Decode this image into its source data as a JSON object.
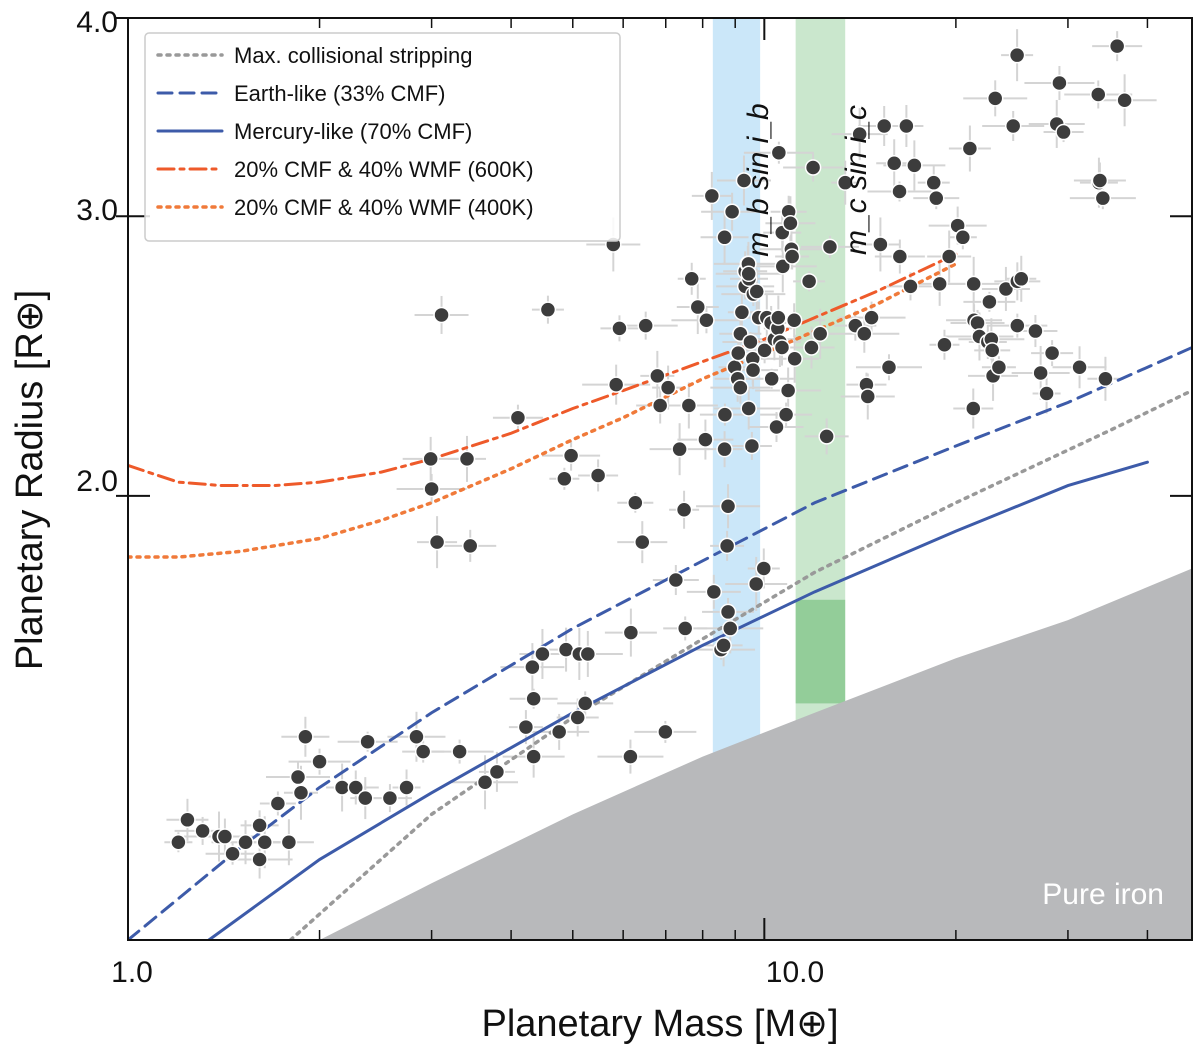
{
  "chart_data": {
    "type": "scatter",
    "xscale": "log",
    "yscale": "log",
    "xlim": [
      1.0,
      47.0
    ],
    "ylim": [
      1.05,
      4.0
    ],
    "xlabel": "Planetary Mass [M⊕]",
    "ylabel": "Planetary Radius [R⊕]",
    "x_major_ticks": [
      1.0,
      10.0
    ],
    "x_major_tick_labels": [
      "1.0",
      "10.0"
    ],
    "x_minor_ticks": [
      2,
      3,
      4,
      5,
      6,
      7,
      8,
      9,
      20,
      30,
      40
    ],
    "y_major_ticks": [
      2.0,
      3.0,
      4.0
    ],
    "y_major_tick_labels": [
      "2.0",
      "3.0",
      "4.0"
    ],
    "legend": {
      "position": "top-left",
      "entries": [
        {
          "label": "Max. collisional stripping",
          "color": "#999999",
          "style": "dotted"
        },
        {
          "label": "Earth-like (33% CMF)",
          "color": "#3d5ba9",
          "style": "dashed"
        },
        {
          "label": "Mercury-like (70% CMF)",
          "color": "#3d5ba9",
          "style": "solid"
        },
        {
          "label": "20% CMF & 40% WMF (600K)",
          "color": "#ee5a2a",
          "style": "dashdot"
        },
        {
          "label": "20% CMF & 40% WMF (400K)",
          "color": "#f07a3a",
          "style": "dotted"
        }
      ]
    },
    "series": [
      {
        "name": "Max. collisional stripping",
        "color": "#999999",
        "style": "dotted",
        "x": [
          1.8,
          3.0,
          5.0,
          8.0,
          12.0,
          20.0,
          35.0,
          47.0
        ],
        "y": [
          1.05,
          1.26,
          1.45,
          1.625,
          1.79,
          1.98,
          2.2,
          2.33
        ]
      },
      {
        "name": "Earth-like (33% CMF)",
        "color": "#3d5ba9",
        "style": "dashed",
        "x": [
          1.0,
          1.5,
          2.0,
          3.0,
          5.0,
          8.0,
          12.0,
          20.0,
          30.0,
          47.0
        ],
        "y": [
          1.05,
          1.2,
          1.31,
          1.46,
          1.65,
          1.82,
          1.98,
          2.15,
          2.29,
          2.48
        ]
      },
      {
        "name": "Mercury-like (70% CMF)",
        "color": "#3d5ba9",
        "style": "solid",
        "x": [
          1.34,
          2.0,
          3.0,
          5.0,
          8.0,
          12.0,
          20.0,
          30.0,
          40.0
        ],
        "y": [
          1.05,
          1.18,
          1.3,
          1.46,
          1.61,
          1.74,
          1.9,
          2.03,
          2.1
        ]
      },
      {
        "name": "20% CMF & 40% WMF (600K)",
        "color": "#ee5a2a",
        "style": "dashdot",
        "x": [
          1.0,
          1.2,
          1.4,
          1.7,
          2.0,
          2.5,
          3.0,
          4.0,
          5.0,
          6.0,
          8.0,
          10.0,
          12.0,
          15.0,
          20.0
        ],
        "y": [
          2.09,
          2.04,
          2.03,
          2.03,
          2.04,
          2.07,
          2.11,
          2.19,
          2.27,
          2.33,
          2.43,
          2.51,
          2.59,
          2.69,
          2.84
        ]
      },
      {
        "name": "20% CMF & 40% WMF (400K)",
        "color": "#f07a3a",
        "style": "dotted",
        "x": [
          1.0,
          1.2,
          1.5,
          2.0,
          2.5,
          3.0,
          4.0,
          5.0,
          6.0,
          8.0,
          10.0,
          12.0,
          15.0,
          20.0
        ],
        "y": [
          1.83,
          1.83,
          1.845,
          1.88,
          1.93,
          1.98,
          2.08,
          2.17,
          2.24,
          2.37,
          2.46,
          2.54,
          2.64,
          2.8
        ]
      }
    ],
    "shaded_regions": [
      {
        "name": "m_b sin i_b",
        "label": "m_b sin i_b",
        "color": "#5eb4ec",
        "x_range": [
          8.3,
          9.85
        ]
      },
      {
        "name": "m_c sin i_c",
        "label": "m_c sin i_c",
        "color": "#4fae5a",
        "x_range": [
          11.2,
          13.4
        ],
        "inner_range": {
          "y_range": [
            1.48,
            1.72
          ]
        }
      },
      {
        "name": "Pure iron",
        "label": "Pure iron",
        "color": "#b8b9bb",
        "x": [
          2.0,
          3.0,
          5.0,
          8.0,
          12.0,
          20.0,
          30.0,
          47.0
        ],
        "y": [
          1.05,
          1.14,
          1.26,
          1.37,
          1.46,
          1.58,
          1.67,
          1.8
        ]
      }
    ],
    "points": [
      [
        1.2,
        1.21
      ],
      [
        1.24,
        1.25
      ],
      [
        1.31,
        1.23
      ],
      [
        1.39,
        1.22
      ],
      [
        1.42,
        1.22
      ],
      [
        1.46,
        1.19
      ],
      [
        1.53,
        1.21
      ],
      [
        1.61,
        1.24
      ],
      [
        1.64,
        1.21
      ],
      [
        1.61,
        1.18
      ],
      [
        1.72,
        1.28
      ],
      [
        1.79,
        1.21
      ],
      [
        1.85,
        1.33
      ],
      [
        1.87,
        1.3
      ],
      [
        1.9,
        1.41
      ],
      [
        2.0,
        1.36
      ],
      [
        2.17,
        1.31
      ],
      [
        2.28,
        1.31
      ],
      [
        2.38,
        1.4
      ],
      [
        2.36,
        1.29
      ],
      [
        2.58,
        1.29
      ],
      [
        2.84,
        1.41
      ],
      [
        2.74,
        1.31
      ],
      [
        2.91,
        1.38
      ],
      [
        2.99,
        2.11
      ],
      [
        3.0,
        2.02
      ],
      [
        3.06,
        1.87
      ],
      [
        3.11,
        2.6
      ],
      [
        3.32,
        1.38
      ],
      [
        3.41,
        2.11
      ],
      [
        3.45,
        1.86
      ],
      [
        3.64,
        1.32
      ],
      [
        3.8,
        1.34
      ],
      [
        4.1,
        2.24
      ],
      [
        4.32,
        1.56
      ],
      [
        4.22,
        1.43
      ],
      [
        4.34,
        1.49
      ],
      [
        4.34,
        1.37
      ],
      [
        4.57,
        2.62
      ],
      [
        4.48,
        1.59
      ],
      [
        4.76,
        1.42
      ],
      [
        4.85,
        2.05
      ],
      [
        4.88,
        1.6
      ],
      [
        4.97,
        2.12
      ],
      [
        5.12,
        1.59
      ],
      [
        5.09,
        1.45
      ],
      [
        5.23,
        1.48
      ],
      [
        5.28,
        1.59
      ],
      [
        5.48,
        2.06
      ],
      [
        5.79,
        2.88
      ],
      [
        5.85,
        2.35
      ],
      [
        5.92,
        2.55
      ],
      [
        6.17,
        1.64
      ],
      [
        6.16,
        1.37
      ],
      [
        6.27,
        1.98
      ],
      [
        6.43,
        1.87
      ],
      [
        6.51,
        2.56
      ],
      [
        6.79,
        2.38
      ],
      [
        6.86,
        2.28
      ],
      [
        6.99,
        1.42
      ],
      [
        7.06,
        2.34
      ],
      [
        7.26,
        1.77
      ],
      [
        7.36,
        2.14
      ],
      [
        7.48,
        1.96
      ],
      [
        7.51,
        1.65
      ],
      [
        7.61,
        2.28
      ],
      [
        7.69,
        2.74
      ],
      [
        7.86,
        2.63
      ],
      [
        8.08,
        2.17
      ],
      [
        8.11,
        2.58
      ],
      [
        8.27,
        3.09
      ],
      [
        8.33,
        1.74
      ],
      [
        8.55,
        1.6
      ],
      [
        8.63,
        1.61
      ],
      [
        8.77,
        1.69
      ],
      [
        8.84,
        1.65
      ],
      [
        8.66,
        2.14
      ],
      [
        8.67,
        2.25
      ],
      [
        8.77,
        1.97
      ],
      [
        8.74,
        1.86
      ],
      [
        8.66,
        2.91
      ],
      [
        8.9,
        3.02
      ],
      [
        8.98,
        2.41
      ],
      [
        9.08,
        2.37
      ],
      [
        9.17,
        2.34
      ],
      [
        9.1,
        2.46
      ],
      [
        9.33,
        2.77
      ],
      [
        9.33,
        2.71
      ],
      [
        9.22,
        2.61
      ],
      [
        9.17,
        2.53
      ],
      [
        9.51,
        2.5
      ],
      [
        9.45,
        2.27
      ],
      [
        9.56,
        2.15
      ],
      [
        9.29,
        3.16
      ],
      [
        9.42,
        2.8
      ],
      [
        9.46,
        2.74
      ],
      [
        9.44,
        2.8
      ],
      [
        9.45,
        2.76
      ],
      [
        9.59,
        2.44
      ],
      [
        9.6,
        2.4
      ],
      [
        9.61,
        2.68
      ],
      [
        9.73,
        2.69
      ],
      [
        9.8,
        2.59
      ],
      [
        9.71,
        1.76
      ],
      [
        9.98,
        1.8
      ],
      [
        10.01,
        2.47
      ],
      [
        10.09,
        2.59
      ],
      [
        10.25,
        2.57
      ],
      [
        10.27,
        2.37
      ],
      [
        10.37,
        2.51
      ],
      [
        10.5,
        2.55
      ],
      [
        10.58,
        2.5
      ],
      [
        10.66,
        2.48
      ],
      [
        10.54,
        3.29
      ],
      [
        10.52,
        2.59
      ],
      [
        10.45,
        2.21
      ],
      [
        10.69,
        2.79
      ],
      [
        10.67,
        2.93
      ],
      [
        10.82,
        2.25
      ],
      [
        10.9,
        2.33
      ],
      [
        10.92,
        3.02
      ],
      [
        10.99,
        2.97
      ],
      [
        11.03,
        2.86
      ],
      [
        11.06,
        2.83
      ],
      [
        11.16,
        2.44
      ],
      [
        11.14,
        2.58
      ],
      [
        11.76,
        2.73
      ],
      [
        11.86,
        2.48
      ],
      [
        11.93,
        3.22
      ],
      [
        12.24,
        2.53
      ],
      [
        12.53,
        2.18
      ],
      [
        12.68,
        2.87
      ],
      [
        13.4,
        3.15
      ],
      [
        13.9,
        2.56
      ],
      [
        14.12,
        3.38
      ],
      [
        14.36,
        2.53
      ],
      [
        14.47,
        2.35
      ],
      [
        14.54,
        2.31
      ],
      [
        14.74,
        2.59
      ],
      [
        15.22,
        2.88
      ],
      [
        15.43,
        3.42
      ],
      [
        15.7,
        2.41
      ],
      [
        16.0,
        3.24
      ],
      [
        16.33,
        2.83
      ],
      [
        16.31,
        3.11
      ],
      [
        16.72,
        3.42
      ],
      [
        16.97,
        2.71
      ],
      [
        17.21,
        3.23
      ],
      [
        18.46,
        3.15
      ],
      [
        18.63,
        3.08
      ],
      [
        18.86,
        2.72
      ],
      [
        19.19,
        2.49
      ],
      [
        19.52,
        2.83
      ],
      [
        20.13,
        2.96
      ],
      [
        20.51,
        2.91
      ],
      [
        21.04,
        3.31
      ],
      [
        21.36,
        2.58
      ],
      [
        21.33,
        2.72
      ],
      [
        21.3,
        2.27
      ],
      [
        21.63,
        2.57
      ],
      [
        21.78,
        2.52
      ],
      [
        22.45,
        2.5
      ],
      [
        22.58,
        2.65
      ],
      [
        22.74,
        2.51
      ],
      [
        22.81,
        2.47
      ],
      [
        22.88,
        2.38
      ],
      [
        23.06,
        3.56
      ],
      [
        23.37,
        2.41
      ],
      [
        23.97,
        2.7
      ],
      [
        24.61,
        3.42
      ],
      [
        24.96,
        3.79
      ],
      [
        24.98,
        2.73
      ],
      [
        24.98,
        2.56
      ],
      [
        25.34,
        2.74
      ],
      [
        26.67,
        2.54
      ],
      [
        27.18,
        2.39
      ],
      [
        27.77,
        2.32
      ],
      [
        28.33,
        2.46
      ],
      [
        28.81,
        3.43
      ],
      [
        29.09,
        3.64
      ],
      [
        29.53,
        3.39
      ],
      [
        31.29,
        2.41
      ],
      [
        33.48,
        3.58
      ],
      [
        33.56,
        3.15
      ],
      [
        33.68,
        3.16
      ],
      [
        34.04,
        3.08
      ],
      [
        34.36,
        2.37
      ],
      [
        35.85,
        3.84
      ],
      [
        36.83,
        3.55
      ]
    ]
  },
  "annotations": {
    "band_b": "m_b sin i_b",
    "band_c": "m_c sin i_c",
    "iron": "Pure iron"
  },
  "colors": {
    "point": "#3c3c3c",
    "errorbar": "#d4d4d4",
    "iron": "#b8b9bb",
    "band_b": "#5eb4ec",
    "band_c": "#4fae5a"
  }
}
